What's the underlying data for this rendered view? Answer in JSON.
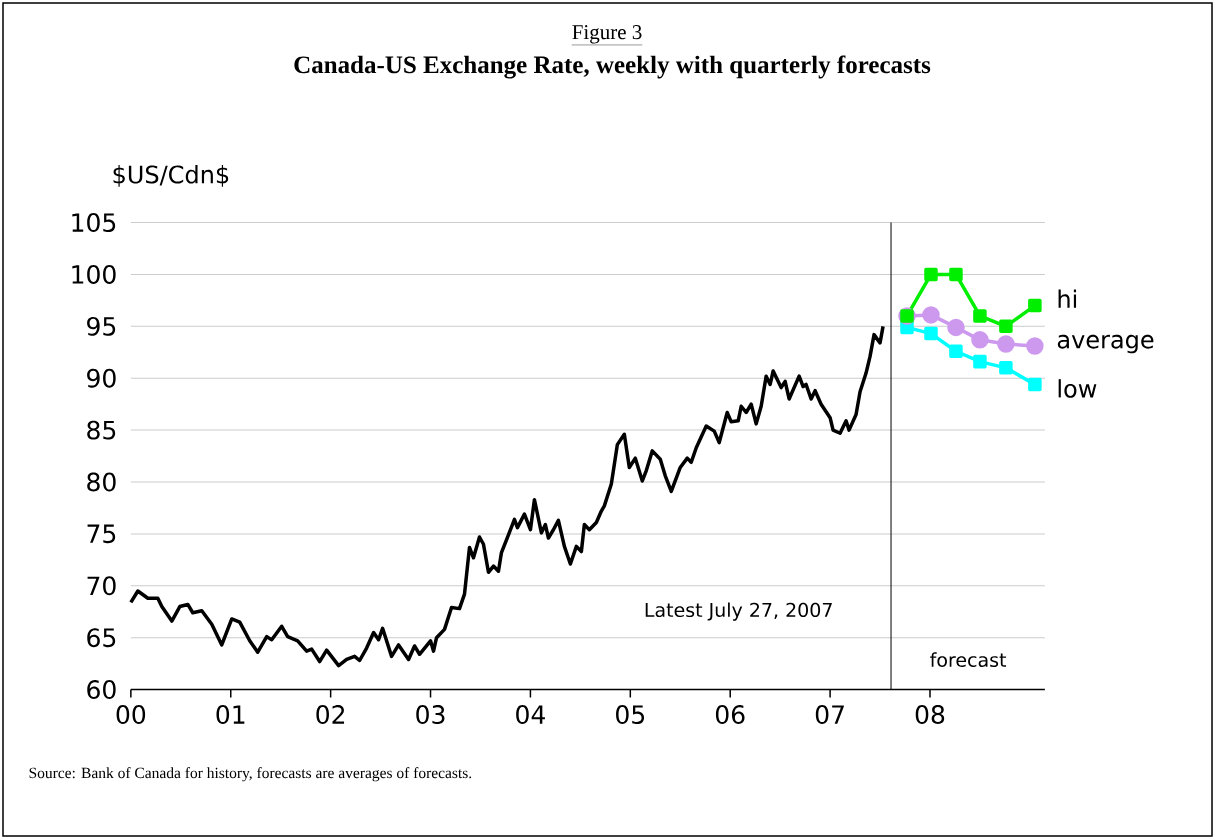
{
  "chart_data": {
    "type": "line",
    "subtitle": "Figure 3",
    "title": "Canada-US Exchange Rate, weekly with quarterly forecasts",
    "ylabel": "$US/Cdn$",
    "xlim": [
      0,
      9.15
    ],
    "ylim": [
      60,
      105
    ],
    "xticks": [
      {
        "value": 0,
        "label": "00"
      },
      {
        "value": 1,
        "label": "01"
      },
      {
        "value": 2,
        "label": "02"
      },
      {
        "value": 3,
        "label": "03"
      },
      {
        "value": 4,
        "label": "04"
      },
      {
        "value": 5,
        "label": "05"
      },
      {
        "value": 6,
        "label": "06"
      },
      {
        "value": 7,
        "label": "07"
      },
      {
        "value": 8,
        "label": "08"
      }
    ],
    "yticks": [
      60,
      65,
      70,
      75,
      80,
      85,
      90,
      95,
      100,
      105
    ],
    "grid": "y",
    "series": [
      {
        "color": "#000000",
        "marker": "none",
        "x": [
          0.0,
          0.07,
          0.17,
          0.27,
          0.31,
          0.41,
          0.49,
          0.57,
          0.62,
          0.71,
          0.81,
          0.91,
          1.01,
          1.09,
          1.19,
          1.27,
          1.36,
          1.41,
          1.51,
          1.57,
          1.67,
          1.76,
          1.81,
          1.89,
          1.96,
          2.08,
          2.16,
          2.24,
          2.29,
          2.36,
          2.43,
          2.48,
          2.52,
          2.61,
          2.68,
          2.78,
          2.84,
          2.89,
          3.0,
          3.03,
          3.06,
          3.14,
          3.21,
          3.29,
          3.34,
          3.39,
          3.43,
          3.49,
          3.53,
          3.58,
          3.63,
          3.68,
          3.71,
          3.78,
          3.84,
          3.87,
          3.94,
          4.0,
          4.04,
          4.11,
          4.15,
          4.18,
          4.23,
          4.28,
          4.34,
          4.4,
          4.46,
          4.51,
          4.54,
          4.59,
          4.66,
          4.71,
          4.74,
          4.81,
          4.87,
          4.94,
          4.99,
          5.05,
          5.12,
          5.16,
          5.22,
          5.3,
          5.35,
          5.41,
          5.5,
          5.57,
          5.61,
          5.66,
          5.76,
          5.84,
          5.89,
          5.97,
          6.01,
          6.08,
          6.11,
          6.16,
          6.21,
          6.26,
          6.31,
          6.36,
          6.4,
          6.43,
          6.51,
          6.55,
          6.59,
          6.69,
          6.73,
          6.76,
          6.81,
          6.85,
          6.91,
          7.0,
          7.03,
          7.1,
          7.16,
          7.19,
          7.26,
          7.3,
          7.36,
          7.4,
          7.44,
          7.5,
          7.53
        ],
        "values": [
          68.4,
          69.5,
          68.8,
          68.8,
          68.0,
          66.6,
          68.0,
          68.2,
          67.4,
          67.6,
          66.3,
          64.3,
          66.8,
          66.5,
          64.7,
          63.6,
          65.1,
          64.8,
          66.1,
          65.1,
          64.7,
          63.7,
          63.9,
          62.7,
          63.8,
          62.3,
          62.9,
          63.2,
          62.8,
          64.0,
          65.5,
          64.8,
          65.9,
          63.2,
          64.3,
          62.9,
          64.2,
          63.4,
          64.7,
          63.7,
          65.0,
          65.8,
          67.9,
          67.8,
          69.2,
          73.7,
          72.7,
          74.7,
          74.0,
          71.3,
          71.9,
          71.4,
          73.2,
          74.9,
          76.4,
          75.6,
          76.9,
          75.4,
          78.3,
          75.1,
          75.9,
          74.6,
          75.4,
          76.3,
          73.8,
          72.1,
          73.8,
          73.3,
          75.9,
          75.4,
          76.1,
          77.2,
          77.7,
          79.8,
          83.6,
          84.6,
          81.4,
          82.3,
          80.1,
          81.1,
          83.0,
          82.2,
          80.6,
          79.1,
          81.4,
          82.3,
          81.9,
          83.3,
          85.4,
          84.9,
          83.8,
          86.7,
          85.8,
          85.9,
          87.3,
          86.7,
          87.5,
          85.6,
          87.3,
          90.2,
          89.4,
          90.7,
          89.1,
          89.7,
          88.0,
          90.2,
          89.2,
          89.4,
          88.0,
          88.8,
          87.5,
          86.2,
          85.0,
          84.7,
          85.9,
          85.0,
          86.5,
          88.7,
          90.5,
          92.1,
          94.2,
          93.4,
          95.0
        ]
      },
      {
        "name": "hi",
        "color": "#00ee00",
        "marker": "square",
        "x": [
          7.77,
          8.01,
          8.26,
          8.5,
          8.76,
          9.05
        ],
        "values": [
          96,
          100,
          100,
          96,
          95,
          97
        ]
      },
      {
        "name": "average",
        "color": "#cc99ee",
        "marker": "circle",
        "x": [
          7.77,
          8.01,
          8.26,
          8.5,
          8.76,
          9.05
        ],
        "values": [
          96,
          96.1,
          94.9,
          93.7,
          93.3,
          93.1
        ]
      },
      {
        "name": "low",
        "color": "#00ffff",
        "marker": "square",
        "x": [
          7.77,
          8.01,
          8.26,
          8.5,
          8.76,
          9.05
        ],
        "values": [
          94.9,
          94.3,
          92.6,
          91.6,
          91.0,
          89.4
        ]
      }
    ],
    "ref_lines": [
      {
        "axis": "x",
        "value": 7.61,
        "color": "#000000"
      }
    ],
    "annotations": [
      "Latest July 27, 2007",
      "forecast",
      "Source:  Bank of Canada for history, forecasts are averages of forecasts."
    ]
  }
}
